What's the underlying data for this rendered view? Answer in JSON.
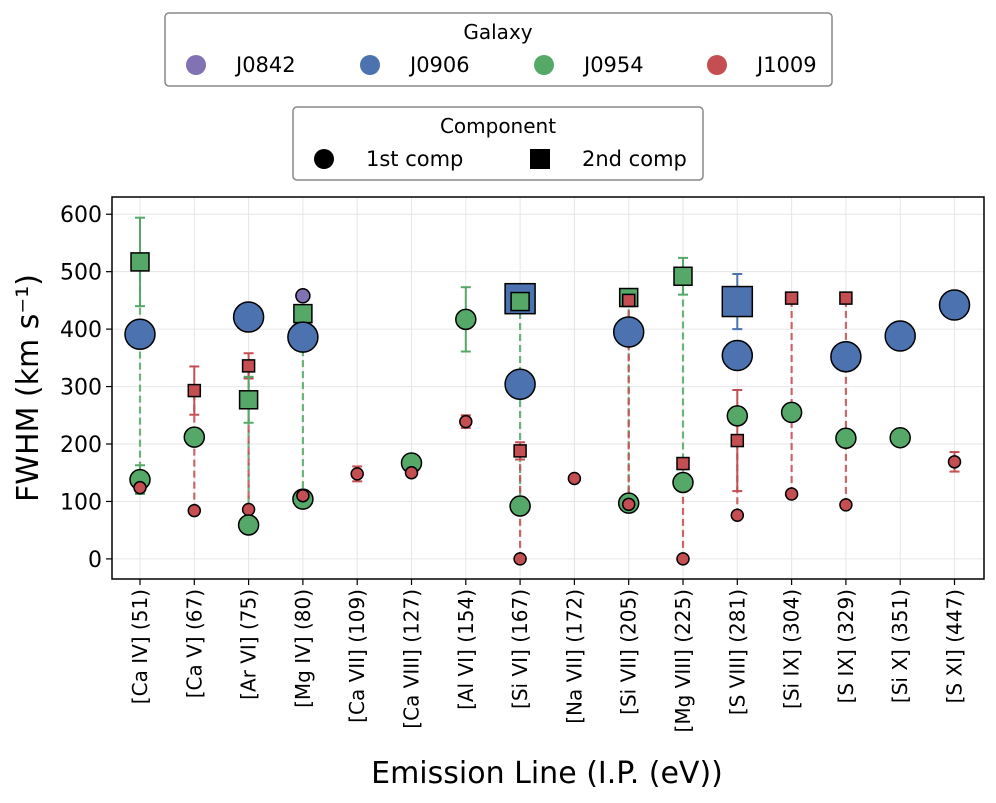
{
  "chart_data": {
    "type": "scatter",
    "xlabel": "Emission Line (I.P. (eV))",
    "ylabel": "FWHM (km s⁻¹)",
    "ylim": [
      -35,
      630
    ],
    "yticks": [
      0,
      100,
      200,
      300,
      400,
      500,
      600
    ],
    "grid": true,
    "categories": [
      "[Ca IV] (51)",
      "[Ca V] (67)",
      "[Ar VI] (75)",
      "[Mg IV] (80)",
      "[Ca VII] (109)",
      "[Ca VIII] (127)",
      "[Al VI] (154)",
      "[Si VI] (167)",
      "[Na VII] (172)",
      "[Si VII] (205)",
      "[Mg VIII] (225)",
      "[S VIII] (281)",
      "[Si IX] (304)",
      "[S IX] (329)",
      "[Si X] (351)",
      "[S XI] (447)"
    ],
    "galaxy_legend": {
      "title": "Galaxy",
      "entries": [
        {
          "name": "J0842",
          "color": "#8172b3"
        },
        {
          "name": "J0906",
          "color": "#4c72b0"
        },
        {
          "name": "J0954",
          "color": "#55a868"
        },
        {
          "name": "J1009",
          "color": "#c44e52"
        }
      ]
    },
    "component_legend": {
      "title": "Component",
      "entries": [
        {
          "name": "1st comp",
          "marker": "circle"
        },
        {
          "name": "2nd comp",
          "marker": "square"
        }
      ]
    },
    "connections": [
      {
        "line": 0,
        "galaxy": "J0954",
        "y1": 138,
        "y2": 517
      },
      {
        "line": 1,
        "galaxy": "J1009",
        "y1": 84,
        "y2": 293
      },
      {
        "line": 2,
        "galaxy": "J0954",
        "y1": 59,
        "y2": 277
      },
      {
        "line": 2,
        "galaxy": "J1009",
        "y1": 86,
        "y2": 336
      },
      {
        "line": 3,
        "galaxy": "J0954",
        "y1": 104,
        "y2": 427
      },
      {
        "line": 7,
        "galaxy": "J0954",
        "y1": 92,
        "y2": 448
      },
      {
        "line": 7,
        "galaxy": "J1009",
        "y1": 0,
        "y2": 188
      },
      {
        "line": 9,
        "galaxy": "J0954",
        "y1": 97,
        "y2": 455
      },
      {
        "line": 9,
        "galaxy": "J1009",
        "y1": 95,
        "y2": 450
      },
      {
        "line": 10,
        "galaxy": "J0954",
        "y1": 133,
        "y2": 492
      },
      {
        "line": 10,
        "galaxy": "J1009",
        "y1": 0,
        "y2": 166
      },
      {
        "line": 11,
        "galaxy": "J1009",
        "y1": 76,
        "y2": 206
      },
      {
        "line": 12,
        "galaxy": "J1009",
        "y1": 113,
        "y2": 454
      },
      {
        "line": 13,
        "galaxy": "J1009",
        "y1": 94,
        "y2": 454
      }
    ],
    "points": [
      {
        "line": 0,
        "galaxy": "J0954",
        "comp": 2,
        "value": 517,
        "err": 77
      },
      {
        "line": 0,
        "galaxy": "J0906",
        "comp": 1,
        "value": 391,
        "err": 0
      },
      {
        "line": 0,
        "galaxy": "J0954",
        "comp": 1,
        "value": 138,
        "err": 25
      },
      {
        "line": 0,
        "galaxy": "J1009",
        "comp": 1,
        "value": 124,
        "err": 0
      },
      {
        "line": 1,
        "galaxy": "J1009",
        "comp": 2,
        "value": 293,
        "err": 42
      },
      {
        "line": 1,
        "galaxy": "J0954",
        "comp": 1,
        "value": 212,
        "err": 0
      },
      {
        "line": 1,
        "galaxy": "J1009",
        "comp": 1,
        "value": 84,
        "err": 0
      },
      {
        "line": 2,
        "galaxy": "J0906",
        "comp": 1,
        "value": 421,
        "err": 0
      },
      {
        "line": 2,
        "galaxy": "J1009",
        "comp": 2,
        "value": 336,
        "err": 22
      },
      {
        "line": 2,
        "galaxy": "J0954",
        "comp": 2,
        "value": 277,
        "err": 40
      },
      {
        "line": 2,
        "galaxy": "J1009",
        "comp": 1,
        "value": 86,
        "err": 0
      },
      {
        "line": 2,
        "galaxy": "J0954",
        "comp": 1,
        "value": 59,
        "err": 0
      },
      {
        "line": 3,
        "galaxy": "J0842",
        "comp": 1,
        "value": 458,
        "err": 0
      },
      {
        "line": 3,
        "galaxy": "J0954",
        "comp": 2,
        "value": 427,
        "err": 0
      },
      {
        "line": 3,
        "galaxy": "J0906",
        "comp": 1,
        "value": 386,
        "err": 0
      },
      {
        "line": 3,
        "galaxy": "J0954",
        "comp": 1,
        "value": 104,
        "err": 0
      },
      {
        "line": 3,
        "galaxy": "J1009",
        "comp": 1,
        "value": 110,
        "err": 0
      },
      {
        "line": 4,
        "galaxy": "J1009",
        "comp": 1,
        "value": 148,
        "err": 13
      },
      {
        "line": 5,
        "galaxy": "J0954",
        "comp": 1,
        "value": 167,
        "err": 0
      },
      {
        "line": 5,
        "galaxy": "J1009",
        "comp": 1,
        "value": 150,
        "err": 0
      },
      {
        "line": 6,
        "galaxy": "J0954",
        "comp": 1,
        "value": 417,
        "err": 56
      },
      {
        "line": 6,
        "galaxy": "J1009",
        "comp": 1,
        "value": 239,
        "err": 11
      },
      {
        "line": 7,
        "galaxy": "J0906",
        "comp": 2,
        "value": 453,
        "err": 0
      },
      {
        "line": 7,
        "galaxy": "J0954",
        "comp": 2,
        "value": 448,
        "err": 0
      },
      {
        "line": 7,
        "galaxy": "J0906",
        "comp": 1,
        "value": 304,
        "err": 0
      },
      {
        "line": 7,
        "galaxy": "J1009",
        "comp": 2,
        "value": 188,
        "err": 15
      },
      {
        "line": 7,
        "galaxy": "J0954",
        "comp": 1,
        "value": 92,
        "err": 0
      },
      {
        "line": 7,
        "galaxy": "J1009",
        "comp": 1,
        "value": 0,
        "err": 0
      },
      {
        "line": 8,
        "galaxy": "J1009",
        "comp": 1,
        "value": 140,
        "err": 0
      },
      {
        "line": 9,
        "galaxy": "J0954",
        "comp": 2,
        "value": 455,
        "err": 0
      },
      {
        "line": 9,
        "galaxy": "J1009",
        "comp": 2,
        "value": 450,
        "err": 0
      },
      {
        "line": 9,
        "galaxy": "J0906",
        "comp": 1,
        "value": 395,
        "err": 0
      },
      {
        "line": 9,
        "galaxy": "J0954",
        "comp": 1,
        "value": 97,
        "err": 0
      },
      {
        "line": 9,
        "galaxy": "J1009",
        "comp": 1,
        "value": 95,
        "err": 0
      },
      {
        "line": 10,
        "galaxy": "J0954",
        "comp": 2,
        "value": 492,
        "err": 32
      },
      {
        "line": 10,
        "galaxy": "J1009",
        "comp": 2,
        "value": 166,
        "err": 0
      },
      {
        "line": 10,
        "galaxy": "J0954",
        "comp": 1,
        "value": 133,
        "err": 0
      },
      {
        "line": 10,
        "galaxy": "J1009",
        "comp": 1,
        "value": 0,
        "err": 0
      },
      {
        "line": 11,
        "galaxy": "J0906",
        "comp": 2,
        "value": 448,
        "err": 48
      },
      {
        "line": 11,
        "galaxy": "J0906",
        "comp": 1,
        "value": 354,
        "err": 0
      },
      {
        "line": 11,
        "galaxy": "J0954",
        "comp": 1,
        "value": 249,
        "err": 0
      },
      {
        "line": 11,
        "galaxy": "J1009",
        "comp": 2,
        "value": 206,
        "err": 88
      },
      {
        "line": 11,
        "galaxy": "J1009",
        "comp": 1,
        "value": 76,
        "err": 0
      },
      {
        "line": 12,
        "galaxy": "J1009",
        "comp": 2,
        "value": 454,
        "err": 0
      },
      {
        "line": 12,
        "galaxy": "J0954",
        "comp": 1,
        "value": 255,
        "err": 0
      },
      {
        "line": 12,
        "galaxy": "J1009",
        "comp": 1,
        "value": 113,
        "err": 0
      },
      {
        "line": 13,
        "galaxy": "J1009",
        "comp": 2,
        "value": 454,
        "err": 0
      },
      {
        "line": 13,
        "galaxy": "J0906",
        "comp": 1,
        "value": 352,
        "err": 0
      },
      {
        "line": 13,
        "galaxy": "J0954",
        "comp": 1,
        "value": 210,
        "err": 0
      },
      {
        "line": 13,
        "galaxy": "J1009",
        "comp": 1,
        "value": 94,
        "err": 0
      },
      {
        "line": 14,
        "galaxy": "J0906",
        "comp": 1,
        "value": 388,
        "err": 0
      },
      {
        "line": 14,
        "galaxy": "J0954",
        "comp": 1,
        "value": 211,
        "err": 0
      },
      {
        "line": 15,
        "galaxy": "J0906",
        "comp": 1,
        "value": 442,
        "err": 0
      },
      {
        "line": 15,
        "galaxy": "J1009",
        "comp": 1,
        "value": 169,
        "err": 17
      }
    ]
  }
}
